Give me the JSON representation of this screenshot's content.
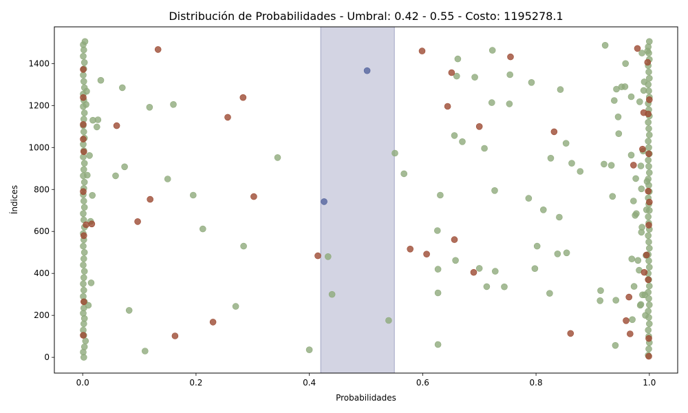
{
  "chart_data": {
    "type": "scatter",
    "title": "Distribución de Probabilidades - Umbral: 0.42 - 0.55 - Costo: 1195278.1",
    "xlabel": "Probabilidades",
    "ylabel": "Índices",
    "xlim": [
      -0.05,
      1.05
    ],
    "ylim": [
      -75,
      1575
    ],
    "x_ticks": [
      0.0,
      0.2,
      0.4,
      0.6,
      0.8,
      1.0
    ],
    "x_tick_labels": [
      "0.0",
      "0.2",
      "0.4",
      "0.6",
      "0.8",
      "1.0"
    ],
    "y_ticks": [
      0,
      200,
      400,
      600,
      800,
      1000,
      1200,
      1400
    ],
    "y_tick_labels": [
      "0",
      "200",
      "400",
      "600",
      "800",
      "1000",
      "1200",
      "1400"
    ],
    "grid": false,
    "threshold_band": {
      "x_start": 0.42,
      "x_end": 0.55,
      "color": "#c4c6da"
    },
    "colors": {
      "green": "#8faa7c",
      "red": "#9c4a32",
      "blue": "#55649e"
    },
    "series": [
      {
        "color": "green",
        "points": [
          [
            0.002,
            0
          ],
          [
            0.001,
            25
          ],
          [
            0.003,
            50
          ],
          [
            0.005,
            78
          ],
          [
            0.002,
            105
          ],
          [
            0.001,
            130
          ],
          [
            0.002,
            160
          ],
          [
            0.003,
            185
          ],
          [
            0.001,
            210
          ],
          [
            0.002,
            235
          ],
          [
            0.003,
            265
          ],
          [
            0.001,
            290
          ],
          [
            0.002,
            320
          ],
          [
            0.001,
            350
          ],
          [
            0.002,
            380
          ],
          [
            0.003,
            410
          ],
          [
            0.001,
            440
          ],
          [
            0.002,
            470
          ],
          [
            0.003,
            500
          ],
          [
            0.001,
            530
          ],
          [
            0.002,
            560
          ],
          [
            0.001,
            590
          ],
          [
            0.003,
            620
          ],
          [
            0.002,
            655
          ],
          [
            0.001,
            685
          ],
          [
            0.003,
            715
          ],
          [
            0.002,
            745
          ],
          [
            0.001,
            775
          ],
          [
            0.002,
            805
          ],
          [
            0.003,
            835
          ],
          [
            0.001,
            865
          ],
          [
            0.002,
            895
          ],
          [
            0.003,
            925
          ],
          [
            0.001,
            955
          ],
          [
            0.002,
            985
          ],
          [
            0.001,
            1015
          ],
          [
            0.003,
            1045
          ],
          [
            0.002,
            1075
          ],
          [
            0.001,
            1105
          ],
          [
            0.002,
            1135
          ],
          [
            0.003,
            1165
          ],
          [
            0.001,
            1195
          ],
          [
            0.002,
            1225
          ],
          [
            0.001,
            1255
          ],
          [
            0.003,
            1285
          ],
          [
            0.002,
            1315
          ],
          [
            0.001,
            1345
          ],
          [
            0.002,
            1375
          ],
          [
            0.003,
            1405
          ],
          [
            0.001,
            1435
          ],
          [
            0.002,
            1465
          ],
          [
            0.001,
            1490
          ],
          [
            0.004,
            1505
          ],
          [
            0.006,
            1205
          ],
          [
            0.007,
            1268
          ],
          [
            0.008,
            868
          ],
          [
            0.01,
            248
          ],
          [
            0.012,
            962
          ],
          [
            0.014,
            648
          ],
          [
            0.015,
            355
          ],
          [
            0.017,
            772
          ],
          [
            0.018,
            1130
          ],
          [
            0.025,
            1098
          ],
          [
            0.027,
            1132
          ],
          [
            0.032,
            1320
          ],
          [
            0.058,
            865
          ],
          [
            0.07,
            1285
          ],
          [
            0.074,
            908
          ],
          [
            0.082,
            224
          ],
          [
            0.11,
            30
          ],
          [
            0.118,
            1192
          ],
          [
            0.15,
            850
          ],
          [
            0.16,
            1205
          ],
          [
            0.195,
            773
          ],
          [
            0.212,
            612
          ],
          [
            0.27,
            243
          ],
          [
            0.284,
            530
          ],
          [
            0.344,
            952
          ],
          [
            0.4,
            36
          ],
          [
            0.433,
            480
          ],
          [
            0.44,
            300
          ],
          [
            0.54,
            176
          ],
          [
            0.551,
            973
          ],
          [
            0.567,
            875
          ],
          [
            0.626,
            604
          ],
          [
            0.627,
            420
          ],
          [
            0.627,
            307
          ],
          [
            0.627,
            61
          ],
          [
            0.631,
            773
          ],
          [
            0.656,
            1057
          ],
          [
            0.658,
            462
          ],
          [
            0.66,
            1340
          ],
          [
            0.662,
            1422
          ],
          [
            0.67,
            1028
          ],
          [
            0.692,
            1335
          ],
          [
            0.7,
            424
          ],
          [
            0.709,
            996
          ],
          [
            0.713,
            337
          ],
          [
            0.722,
            1214
          ],
          [
            0.723,
            1463
          ],
          [
            0.727,
            795
          ],
          [
            0.728,
            410
          ],
          [
            0.744,
            336
          ],
          [
            0.753,
            1208
          ],
          [
            0.754,
            1347
          ],
          [
            0.787,
            758
          ],
          [
            0.792,
            1310
          ],
          [
            0.798,
            423
          ],
          [
            0.802,
            530
          ],
          [
            0.813,
            703
          ],
          [
            0.824,
            305
          ],
          [
            0.826,
            949
          ],
          [
            0.838,
            493
          ],
          [
            0.841,
            668
          ],
          [
            0.843,
            1276
          ],
          [
            0.853,
            1020
          ],
          [
            0.854,
            498
          ],
          [
            0.863,
            925
          ],
          [
            0.878,
            886
          ],
          [
            0.913,
            270
          ],
          [
            0.914,
            318
          ],
          [
            0.92,
            921
          ],
          [
            0.922,
            1487
          ],
          [
            0.933,
            915
          ],
          [
            0.935,
            767
          ],
          [
            0.938,
            1224
          ],
          [
            0.94,
            57
          ],
          [
            0.941,
            272
          ],
          [
            0.942,
            1278
          ],
          [
            0.945,
            1146
          ],
          [
            0.946,
            1066
          ],
          [
            0.951,
            1289
          ],
          [
            0.957,
            1290
          ],
          [
            0.958,
            1400
          ],
          [
            0.968,
            1242
          ],
          [
            0.968,
            964
          ],
          [
            0.969,
            469
          ],
          [
            0.97,
            180
          ],
          [
            0.972,
            745
          ],
          [
            0.973,
            338
          ],
          [
            0.975,
            677
          ],
          [
            0.976,
            852
          ],
          [
            0.977,
            685
          ],
          [
            0.98,
            462
          ],
          [
            0.982,
            415
          ],
          [
            0.983,
            1218
          ],
          [
            0.984,
            248
          ],
          [
            0.985,
            252
          ],
          [
            0.985,
            912
          ],
          [
            0.986,
            803
          ],
          [
            0.986,
            596
          ],
          [
            0.987,
            620
          ],
          [
            0.987,
            1450
          ],
          [
            0.988,
            298
          ],
          [
            0.989,
            983
          ],
          [
            0.99,
            1272
          ],
          [
            0.991,
            1313
          ],
          [
            0.992,
            298
          ],
          [
            0.993,
            200
          ],
          [
            0.994,
            486
          ],
          [
            0.995,
            703
          ],
          [
            0.996,
            838
          ],
          [
            0.997,
            1460
          ],
          [
            0.998,
            10
          ],
          [
            0.999,
            40
          ],
          [
            1.0,
            70
          ],
          [
            0.999,
            100
          ],
          [
            0.998,
            130
          ],
          [
            1.0,
            160
          ],
          [
            0.999,
            190
          ],
          [
            0.998,
            220
          ],
          [
            1.0,
            250
          ],
          [
            0.999,
            280
          ],
          [
            0.998,
            310
          ],
          [
            1.0,
            340
          ],
          [
            0.999,
            370
          ],
          [
            0.998,
            400
          ],
          [
            1.0,
            430
          ],
          [
            0.999,
            460
          ],
          [
            0.998,
            490
          ],
          [
            1.0,
            520
          ],
          [
            0.999,
            550
          ],
          [
            0.998,
            580
          ],
          [
            1.0,
            610
          ],
          [
            0.999,
            640
          ],
          [
            0.998,
            670
          ],
          [
            1.0,
            700
          ],
          [
            0.999,
            730
          ],
          [
            0.998,
            760
          ],
          [
            1.0,
            790
          ],
          [
            0.999,
            820
          ],
          [
            0.998,
            850
          ],
          [
            1.0,
            880
          ],
          [
            0.999,
            910
          ],
          [
            0.998,
            940
          ],
          [
            1.0,
            970
          ],
          [
            0.999,
            1000
          ],
          [
            0.998,
            1030
          ],
          [
            1.0,
            1060
          ],
          [
            0.999,
            1090
          ],
          [
            0.998,
            1120
          ],
          [
            1.0,
            1150
          ],
          [
            0.999,
            1180
          ],
          [
            0.998,
            1210
          ],
          [
            1.0,
            1240
          ],
          [
            0.999,
            1270
          ],
          [
            0.998,
            1300
          ],
          [
            1.0,
            1330
          ],
          [
            0.999,
            1360
          ],
          [
            0.998,
            1390
          ],
          [
            1.0,
            1420
          ],
          [
            0.999,
            1450
          ],
          [
            0.998,
            1480
          ],
          [
            1.0,
            1505
          ]
        ]
      },
      {
        "color": "red",
        "points": [
          [
            0.001,
            1372
          ],
          [
            0.001,
            1238
          ],
          [
            0.001,
            1110
          ],
          [
            0.001,
            1040
          ],
          [
            0.002,
            980
          ],
          [
            0.001,
            790
          ],
          [
            0.002,
            580
          ],
          [
            0.002,
            265
          ],
          [
            0.001,
            105
          ],
          [
            0.006,
            632
          ],
          [
            0.016,
            636
          ],
          [
            0.06,
            1104
          ],
          [
            0.097,
            647
          ],
          [
            0.119,
            753
          ],
          [
            0.133,
            1467
          ],
          [
            0.163,
            102
          ],
          [
            0.23,
            168
          ],
          [
            0.256,
            1144
          ],
          [
            0.283,
            1238
          ],
          [
            0.302,
            766
          ],
          [
            0.415,
            484
          ],
          [
            0.578,
            516
          ],
          [
            0.599,
            1460
          ],
          [
            0.607,
            492
          ],
          [
            0.644,
            1196
          ],
          [
            0.651,
            1357
          ],
          [
            0.656,
            561
          ],
          [
            0.69,
            405
          ],
          [
            0.7,
            1100
          ],
          [
            0.755,
            1432
          ],
          [
            0.832,
            1075
          ],
          [
            0.861,
            114
          ],
          [
            0.959,
            175
          ],
          [
            0.964,
            287
          ],
          [
            0.966,
            112
          ],
          [
            0.972,
            916
          ],
          [
            0.979,
            1472
          ],
          [
            0.988,
            992
          ],
          [
            0.99,
            1166
          ],
          [
            0.991,
            405
          ],
          [
            0.995,
            488
          ],
          [
            0.997,
            1406
          ],
          [
            0.998,
            370
          ],
          [
            0.999,
            90
          ],
          [
            0.998,
            792
          ],
          [
            0.999,
            630
          ],
          [
            1.0,
            1228
          ],
          [
            0.999,
            970
          ],
          [
            0.998,
            1160
          ],
          [
            1.0,
            740
          ],
          [
            0.999,
            5
          ]
        ]
      },
      {
        "color": "blue",
        "points": [
          [
            0.426,
            742
          ],
          [
            0.502,
            1366
          ]
        ]
      }
    ]
  }
}
